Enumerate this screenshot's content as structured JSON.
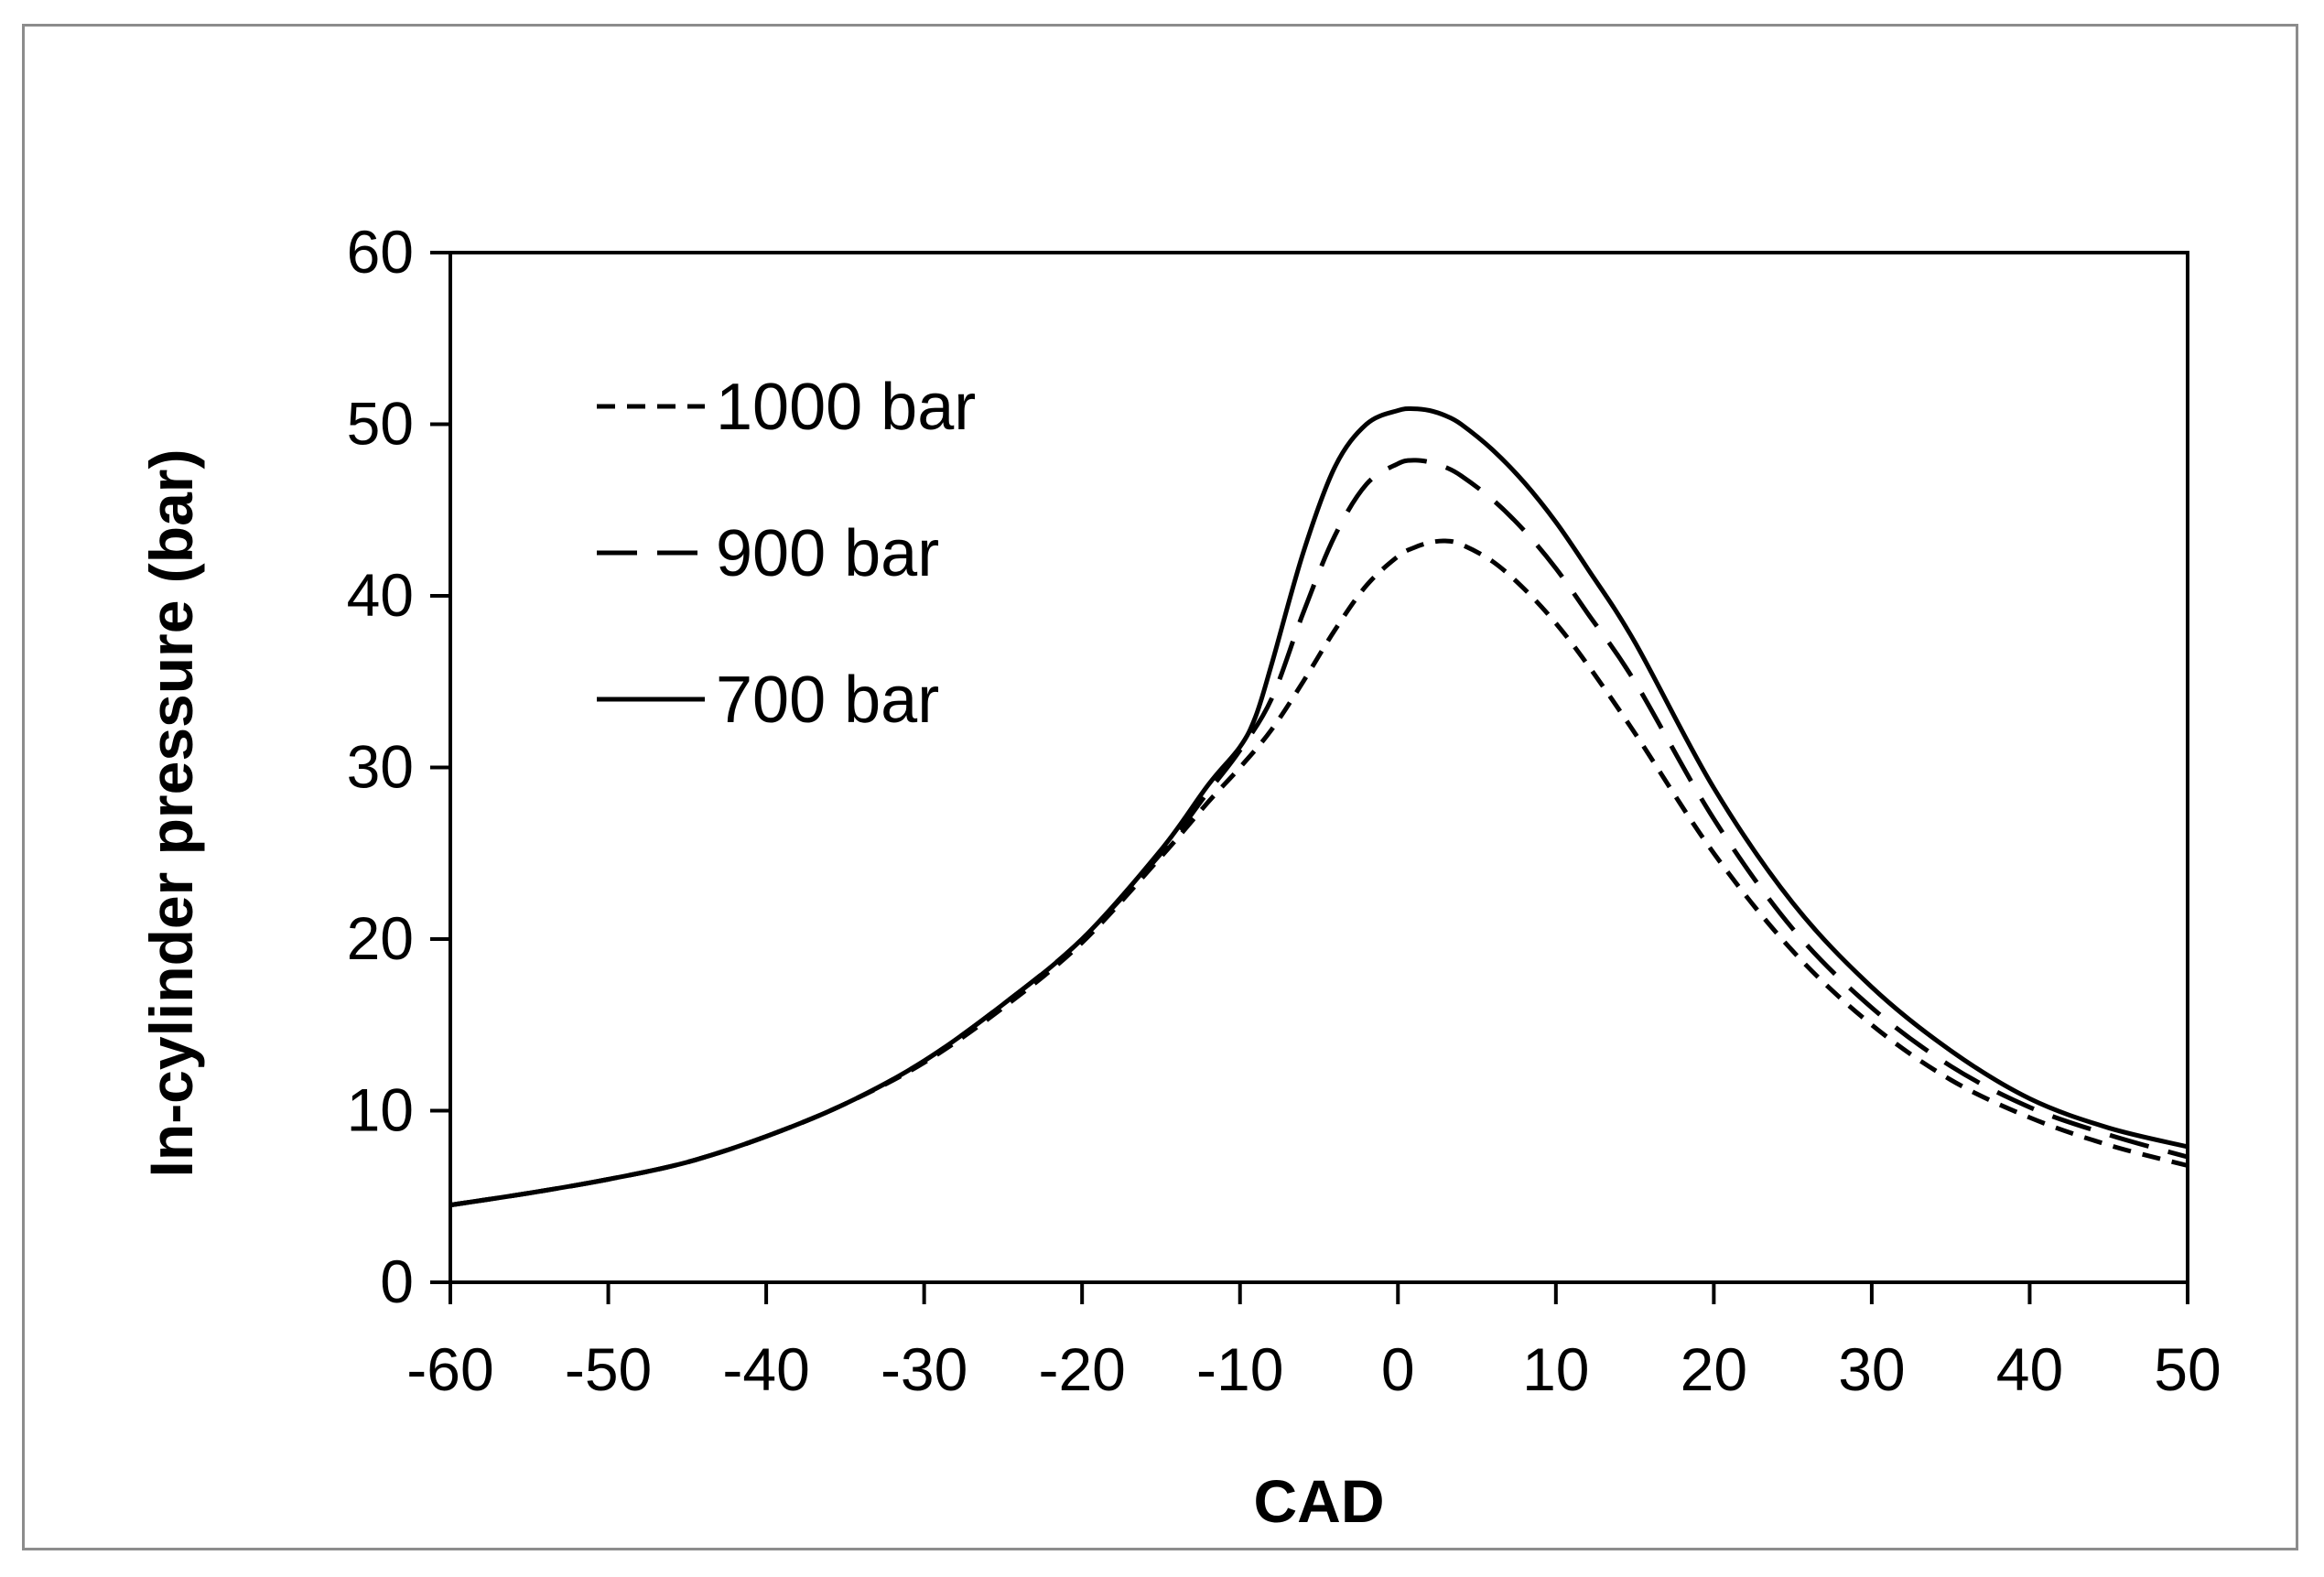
{
  "chart_data": {
    "type": "line",
    "title": "",
    "xlabel": "CAD",
    "ylabel": "In-cylinder pressure (bar)",
    "xlim": [
      -60,
      50
    ],
    "ylim": [
      0,
      60
    ],
    "x_ticks": [
      -60,
      -50,
      -40,
      -30,
      -20,
      -10,
      0,
      10,
      20,
      30,
      40,
      50
    ],
    "y_ticks": [
      0,
      10,
      20,
      30,
      40,
      50,
      60
    ],
    "grid": false,
    "legend_position": "top-left",
    "series": [
      {
        "name": "1000 bar",
        "line_style": "short-dash",
        "x": [
          -60,
          -55,
          -50,
          -45,
          -40,
          -35,
          -30,
          -25,
          -20,
          -15,
          -12,
          -10,
          -8,
          -6,
          -4,
          -2,
          0,
          1,
          2,
          3,
          4,
          6,
          8,
          10,
          12,
          15,
          20,
          25,
          30,
          35,
          40,
          45,
          50
        ],
        "y": [
          4.5,
          5.2,
          6.0,
          7.0,
          8.5,
          10.4,
          12.8,
          16.0,
          19.8,
          24.8,
          28.0,
          30.0,
          32.2,
          35.0,
          38.0,
          40.6,
          42.3,
          42.8,
          43.1,
          43.2,
          43.0,
          42.0,
          40.4,
          38.4,
          36.0,
          32.0,
          25.0,
          19.3,
          15.0,
          11.8,
          9.6,
          8.0,
          6.8
        ]
      },
      {
        "name": "900 bar",
        "line_style": "long-dash",
        "x": [
          -60,
          -55,
          -50,
          -45,
          -40,
          -35,
          -30,
          -25,
          -20,
          -15,
          -12,
          -10,
          -8,
          -6,
          -4,
          -2,
          0,
          1,
          2,
          3,
          4,
          6,
          8,
          10,
          12,
          15,
          20,
          25,
          30,
          35,
          40,
          45,
          50
        ],
        "y": [
          4.5,
          5.2,
          6.0,
          7.0,
          8.5,
          10.4,
          12.9,
          16.2,
          20.0,
          25.0,
          28.6,
          31.0,
          34.0,
          39.0,
          43.5,
          46.5,
          47.7,
          47.9,
          47.8,
          47.5,
          47.0,
          45.6,
          43.8,
          41.6,
          39.0,
          35.0,
          27.0,
          20.6,
          16.0,
          12.6,
          10.2,
          8.6,
          7.3
        ]
      },
      {
        "name": "700 bar",
        "line_style": "solid",
        "x": [
          -60,
          -55,
          -50,
          -45,
          -40,
          -35,
          -30,
          -25,
          -20,
          -15,
          -12,
          -10,
          -9,
          -8,
          -6,
          -4,
          -2,
          0,
          1,
          2,
          3,
          4,
          6,
          8,
          10,
          12,
          15,
          20,
          25,
          30,
          35,
          40,
          45,
          50
        ],
        "y": [
          4.5,
          5.2,
          6.0,
          7.0,
          8.5,
          10.4,
          12.9,
          16.2,
          20.0,
          25.2,
          29.0,
          31.2,
          33.0,
          36.0,
          42.5,
          47.5,
          50.0,
          50.8,
          50.9,
          50.8,
          50.5,
          50.0,
          48.5,
          46.6,
          44.3,
          41.6,
          37.3,
          28.8,
          22.1,
          17.2,
          13.5,
          10.7,
          9.0,
          7.9
        ]
      }
    ]
  }
}
